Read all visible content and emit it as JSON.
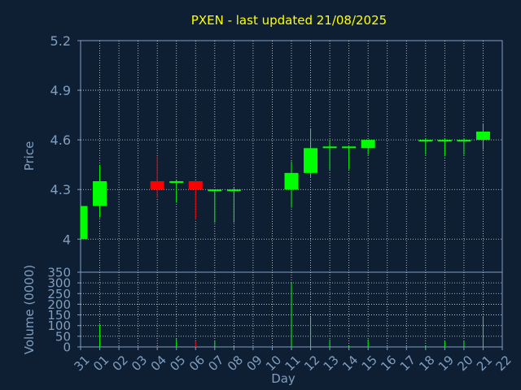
{
  "chart_data": {
    "type": "candlestick",
    "title": "PXEN - last updated 21/08/2025",
    "xlabel": "Day",
    "x_ticks": [
      "31",
      "01",
      "02",
      "03",
      "04",
      "05",
      "06",
      "07",
      "08",
      "09",
      "10",
      "11",
      "12",
      "13",
      "14",
      "15",
      "16",
      "17",
      "18",
      "19",
      "20",
      "21",
      "22"
    ],
    "price": {
      "ylabel": "Price",
      "ylim": [
        3.8,
        5.2
      ],
      "y_ticks": [
        "4",
        "4.3",
        "4.6",
        "4.9",
        "5.2"
      ],
      "y_tick_values": [
        4.0,
        4.3,
        4.6,
        4.9,
        5.2
      ],
      "grid": true
    },
    "volume": {
      "ylabel": "Volume (0000)",
      "ylim": [
        0,
        350
      ],
      "y_ticks": [
        "0",
        "50",
        "100",
        "150",
        "200",
        "250",
        "300",
        "350"
      ],
      "y_tick_values": [
        0,
        50,
        100,
        150,
        200,
        250,
        300,
        350
      ],
      "grid": true
    },
    "candles": [
      {
        "x": "31",
        "open": 4.0,
        "high": 4.2,
        "low": 4.0,
        "close": 4.2
      },
      {
        "x": "01",
        "open": 4.2,
        "high": 4.45,
        "low": 4.13,
        "close": 4.35
      },
      {
        "x": "04",
        "open": 4.35,
        "high": 4.5,
        "low": 4.25,
        "close": 4.3
      },
      {
        "x": "05",
        "open": 4.34,
        "high": 4.36,
        "low": 4.22,
        "close": 4.35
      },
      {
        "x": "06",
        "open": 4.35,
        "high": 4.35,
        "low": 4.12,
        "close": 4.3
      },
      {
        "x": "07",
        "open": 4.3,
        "high": 4.3,
        "low": 4.1,
        "close": 4.3
      },
      {
        "x": "08",
        "open": 4.3,
        "high": 4.31,
        "low": 4.1,
        "close": 4.3
      },
      {
        "x": "11",
        "open": 4.3,
        "high": 4.47,
        "low": 4.19,
        "close": 4.4
      },
      {
        "x": "12",
        "open": 4.4,
        "high": 4.67,
        "low": 4.37,
        "close": 4.55
      },
      {
        "x": "13",
        "open": 4.55,
        "high": 4.6,
        "low": 4.42,
        "close": 4.56
      },
      {
        "x": "14",
        "open": 4.55,
        "high": 4.56,
        "low": 4.42,
        "close": 4.56
      },
      {
        "x": "15",
        "open": 4.55,
        "high": 4.6,
        "low": 4.51,
        "close": 4.6
      },
      {
        "x": "18",
        "open": 4.59,
        "high": 4.61,
        "low": 4.51,
        "close": 4.6
      },
      {
        "x": "19",
        "open": 4.59,
        "high": 4.61,
        "low": 4.5,
        "close": 4.6
      },
      {
        "x": "20",
        "open": 4.59,
        "high": 4.61,
        "low": 4.51,
        "close": 4.6
      },
      {
        "x": "21",
        "open": 4.6,
        "high": 4.7,
        "low": 4.54,
        "close": 4.65
      }
    ],
    "volumes": [
      {
        "x": "31",
        "value": 0
      },
      {
        "x": "01",
        "value": 105
      },
      {
        "x": "04",
        "value": 3
      },
      {
        "x": "05",
        "value": 38
      },
      {
        "x": "06",
        "value": 25
      },
      {
        "x": "07",
        "value": 30
      },
      {
        "x": "08",
        "value": 5
      },
      {
        "x": "11",
        "value": 300
      },
      {
        "x": "12",
        "value": 140
      },
      {
        "x": "13",
        "value": 35
      },
      {
        "x": "14",
        "value": 4
      },
      {
        "x": "15",
        "value": 35
      },
      {
        "x": "18",
        "value": 5
      },
      {
        "x": "19",
        "value": 30
      },
      {
        "x": "20",
        "value": 30
      },
      {
        "x": "21",
        "value": 145
      }
    ],
    "colors": {
      "up": "#00ff00",
      "down": "#ff0000",
      "background": "#0f1f33",
      "axis": "#7f9fc0",
      "grid": "#ffffff",
      "title": "#ffff00"
    }
  }
}
